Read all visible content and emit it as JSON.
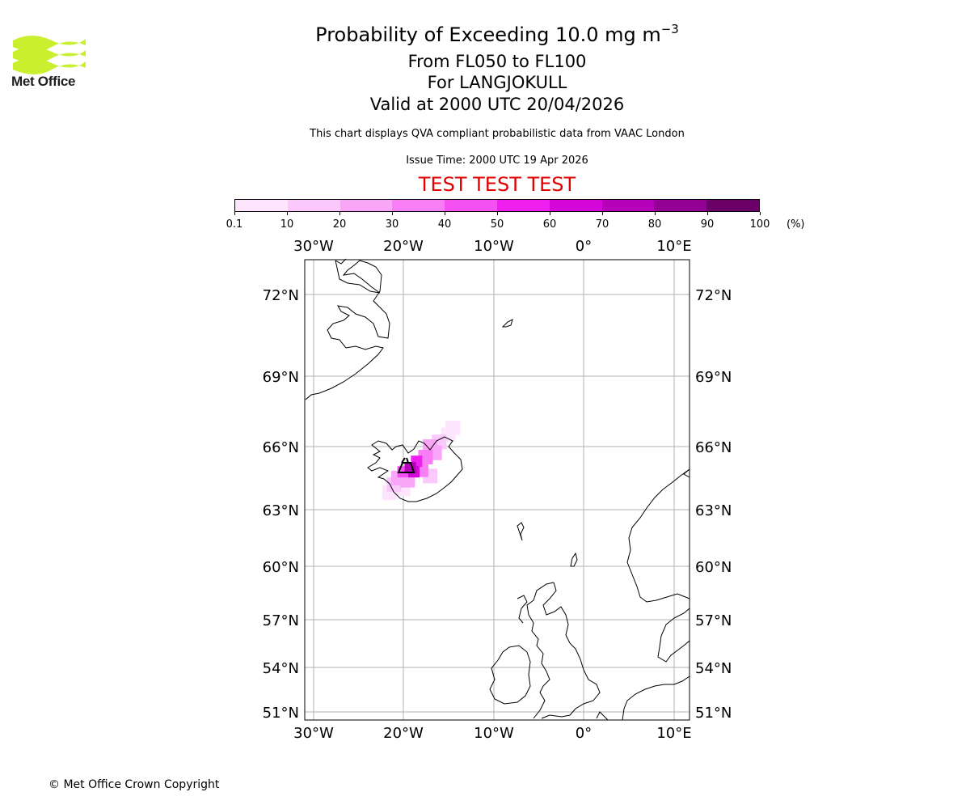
{
  "logo": {
    "text": "Met Office",
    "color": "#c8f02e"
  },
  "header": {
    "title_main": "Probability of Exceeding 10.0 mg m",
    "title_sup": "−3",
    "levels": "From FL050 to FL100",
    "volcano": "For LANGJOKULL",
    "valid": "Valid at 2000 UTC 20/04/2026",
    "description": "This chart displays QVA compliant probabilistic data from VAAC London",
    "issue_time": "Issue Time: 2000 UTC 19 Apr 2026",
    "test_banner": "TEST TEST TEST",
    "test_color": "#e00000"
  },
  "colorbar": {
    "unit": "(%)",
    "ticks": [
      "0.1",
      "10",
      "20",
      "30",
      "40",
      "50",
      "60",
      "70",
      "80",
      "90",
      "100"
    ],
    "colors": [
      "#fde6fd",
      "#fbc8fb",
      "#f9a6f8",
      "#f77ef5",
      "#f550f2",
      "#ef1ff0",
      "#d408d8",
      "#b600b9",
      "#930094",
      "#6a0068"
    ]
  },
  "map": {
    "lon_labels": [
      "30°W",
      "20°W",
      "10°W",
      "0°",
      "10°E"
    ],
    "lat_labels": [
      "72°N",
      "69°N",
      "66°N",
      "63°N",
      "60°N",
      "57°N",
      "54°N",
      "51°N"
    ],
    "plume_probabilities": [
      {
        "lon": -14.5,
        "lat": 66.8,
        "p": 5
      },
      {
        "lon": -15.0,
        "lat": 66.5,
        "p": 8
      },
      {
        "lon": -16.0,
        "lat": 66.2,
        "p": 15
      },
      {
        "lon": -17.0,
        "lat": 66.0,
        "p": 20
      },
      {
        "lon": -16.5,
        "lat": 65.7,
        "p": 25
      },
      {
        "lon": -17.5,
        "lat": 65.5,
        "p": 35
      },
      {
        "lon": -18.5,
        "lat": 65.3,
        "p": 50
      },
      {
        "lon": -19.2,
        "lat": 65.0,
        "p": 75
      },
      {
        "lon": -18.8,
        "lat": 64.8,
        "p": 60
      },
      {
        "lon": -20.0,
        "lat": 64.8,
        "p": 45
      },
      {
        "lon": -18.0,
        "lat": 64.9,
        "p": 30
      },
      {
        "lon": -20.5,
        "lat": 64.5,
        "p": 25
      },
      {
        "lon": -19.5,
        "lat": 64.4,
        "p": 20
      },
      {
        "lon": -21.0,
        "lat": 64.2,
        "p": 10
      },
      {
        "lon": -20.0,
        "lat": 64.0,
        "p": 8
      },
      {
        "lon": -17.0,
        "lat": 64.6,
        "p": 12
      },
      {
        "lon": -21.5,
        "lat": 63.8,
        "p": 3
      }
    ]
  },
  "footer": {
    "copyright": "© Met Office Crown Copyright"
  }
}
